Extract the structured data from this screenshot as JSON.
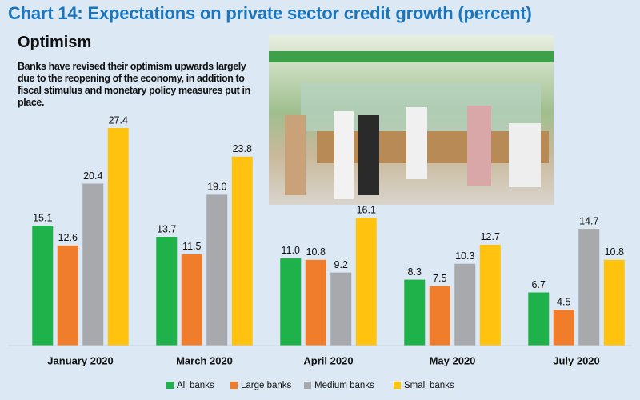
{
  "chart_data": {
    "type": "bar",
    "title": "Chart 14: Expectations on private sector credit growth (percent)",
    "subtitle": "Optimism",
    "annotation": "Banks have revised their optimism upwards largely due to the reopening of the economy, in addition to fiscal stimulus and monetary policy measures put in place.",
    "categories": [
      "January 2020",
      "March 2020",
      "April 2020",
      "May 2020",
      "July 2020"
    ],
    "series": [
      {
        "name": "All banks",
        "color": "#1fb24a",
        "values": [
          15.1,
          13.7,
          11.0,
          8.3,
          6.7
        ],
        "value_labels": [
          "15.1",
          "13.7",
          "11.0",
          "8.3",
          "6.7"
        ]
      },
      {
        "name": "Large banks",
        "color": "#f07d2c",
        "values": [
          12.6,
          11.5,
          10.8,
          7.5,
          4.5
        ],
        "value_labels": [
          "12.6",
          "11.5",
          "10.8",
          "7.5",
          "4.5"
        ]
      },
      {
        "name": "Medium banks",
        "color": "#a7a9ac",
        "values": [
          20.4,
          19.0,
          9.2,
          10.3,
          14.7
        ],
        "value_labels": [
          "20.4",
          "19.0",
          "9.2",
          "10.3",
          "14.7"
        ]
      },
      {
        "name": "Small banks",
        "color": "#ffc20f",
        "values": [
          27.4,
          23.8,
          16.1,
          12.7,
          10.8
        ],
        "value_labels": [
          "27.4",
          "23.8",
          "16.1",
          "12.7",
          "10.8"
        ]
      }
    ],
    "legend": "bottom"
  }
}
